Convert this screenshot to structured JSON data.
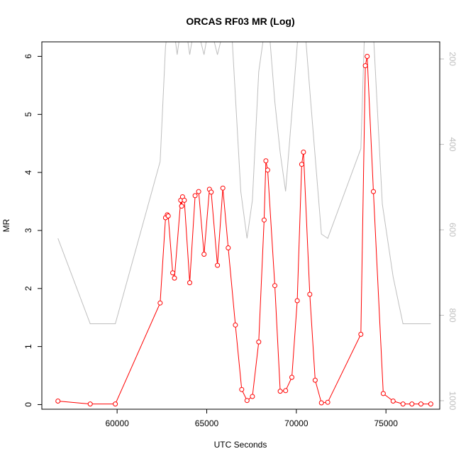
{
  "chart_data": {
    "type": "line",
    "title": "ORCAS RF03 MR (Log)",
    "xlabel": "UTC Seconds",
    "ylabel": "MR",
    "xlim": [
      55800,
      78000
    ],
    "ylim": [
      -0.08,
      6.25
    ],
    "x_ticks": [
      60000,
      65000,
      70000,
      75000
    ],
    "x_tick_labels": [
      "60000",
      "65000",
      "70000",
      "75000"
    ],
    "y_ticks": [
      0,
      1,
      2,
      3,
      4,
      5,
      6
    ],
    "y_tick_labels": [
      "0",
      "1",
      "2",
      "3",
      "4",
      "5",
      "6"
    ],
    "right_axis": {
      "ticks": [
        200,
        400,
        600,
        800,
        1000
      ],
      "tick_labels": [
        "200",
        "400",
        "600",
        "800",
        "1000"
      ],
      "ylim": [
        1020,
        160
      ],
      "color": "#bebebe"
    },
    "series": [
      {
        "color": "#ff0000",
        "marker": "open-circle",
        "x": [
          56700,
          58500,
          59900,
          62400,
          62700,
          62800,
          62850,
          63100,
          63200,
          63550,
          63600,
          63650,
          63750,
          64050,
          64350,
          64550,
          64850,
          65150,
          65250,
          65600,
          65900,
          66200,
          66600,
          66950,
          67250,
          67550,
          67900,
          68200,
          68300,
          68400,
          68800,
          69100,
          69400,
          69750,
          70050,
          70300,
          70400,
          70750,
          71050,
          71400,
          71750,
          73600,
          73850,
          73950,
          74300,
          74850,
          75400,
          75950,
          76450,
          76950,
          77500
        ],
        "y": [
          0.06,
          0.01,
          0.01,
          1.75,
          3.22,
          3.27,
          3.25,
          2.27,
          2.18,
          3.52,
          3.42,
          3.58,
          3.52,
          2.1,
          3.6,
          3.67,
          2.59,
          3.71,
          3.66,
          2.4,
          3.73,
          2.7,
          1.37,
          0.26,
          0.07,
          0.14,
          1.08,
          3.18,
          4.2,
          4.04,
          2.05,
          0.23,
          0.24,
          0.47,
          1.79,
          4.14,
          4.35,
          1.9,
          0.42,
          0.03,
          0.04,
          1.21,
          5.84,
          6.0,
          3.67,
          0.19,
          0.06,
          0.01,
          0.01,
          0.01,
          0.01
        ]
      },
      {
        "color": "#bebebe",
        "axis": "right",
        "x": [
          56700,
          58500,
          59900,
          62400,
          62700,
          62800,
          63200,
          63350,
          63550,
          63850,
          64050,
          64250,
          64550,
          64850,
          65050,
          65300,
          65600,
          65950,
          66400,
          66900,
          67250,
          67550,
          67900,
          68200,
          68350,
          68500,
          68800,
          69100,
          69400,
          69800,
          70100,
          70300,
          70500,
          70800,
          71400,
          71750,
          73600,
          73800,
          73950,
          74300,
          74800,
          75400,
          75950,
          76450,
          77500
        ],
        "y": [
          620,
          820,
          820,
          440,
          170,
          140,
          140,
          190,
          130,
          130,
          190,
          140,
          140,
          190,
          140,
          140,
          190,
          130,
          140,
          510,
          620,
          530,
          230,
          140,
          130,
          140,
          300,
          420,
          510,
          300,
          140,
          130,
          140,
          300,
          610,
          620,
          410,
          140,
          130,
          140,
          540,
          710,
          820,
          820,
          820
        ]
      }
    ]
  }
}
